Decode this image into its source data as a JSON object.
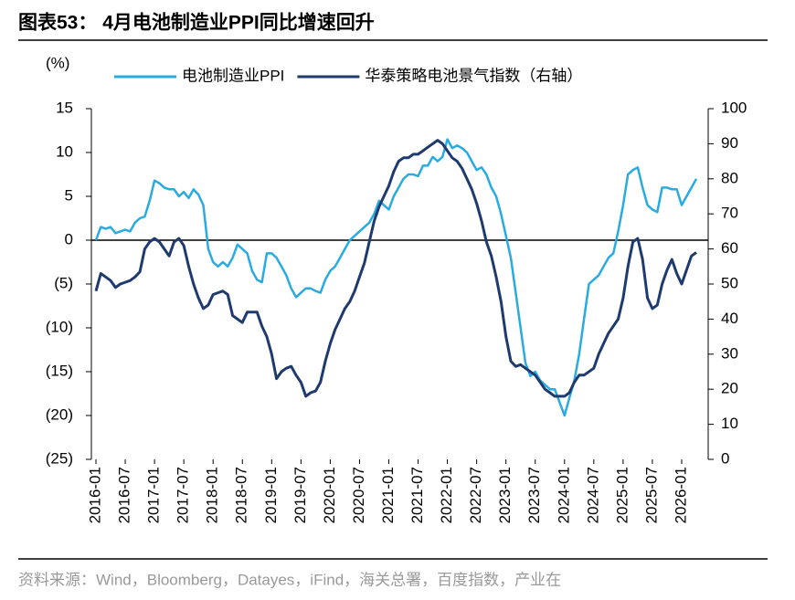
{
  "chart_data": {
    "type": "line",
    "title": "图表53： 4月电池制造业PPI同比增速回升",
    "y_label": "(%)",
    "source": "资料来源：Wind，Bloomberg，Datayes，iFind，海关总署，百度指数，产业在",
    "categories": [
      "2016-01",
      null,
      null,
      null,
      null,
      null,
      "2016-07",
      null,
      null,
      null,
      null,
      null,
      "2017-01",
      null,
      null,
      null,
      null,
      null,
      "2017-07",
      null,
      null,
      null,
      null,
      null,
      "2018-01",
      null,
      null,
      null,
      null,
      null,
      "2018-07",
      null,
      null,
      null,
      null,
      null,
      "2019-01",
      null,
      null,
      null,
      null,
      null,
      "2019-07",
      null,
      null,
      null,
      null,
      null,
      "2020-01",
      null,
      null,
      null,
      null,
      null,
      "2020-07",
      null,
      null,
      null,
      null,
      null,
      "2021-01",
      null,
      null,
      null,
      null,
      null,
      "2021-07",
      null,
      null,
      null,
      null,
      null,
      "2022-01",
      null,
      null,
      null,
      null,
      null,
      "2022-07",
      null,
      null,
      null,
      null,
      null,
      "2023-01",
      null,
      null,
      null,
      null,
      null,
      "2023-07",
      null,
      null,
      null,
      null,
      null,
      "2024-01",
      null,
      null,
      null,
      null,
      null,
      "2024-07",
      null,
      null,
      null,
      null,
      null,
      "2025-01",
      null,
      null,
      null,
      null,
      null,
      "2025-07",
      null,
      null,
      null,
      null,
      null,
      "2026-01",
      null,
      null,
      null
    ],
    "series": [
      {
        "name": "电池制造业PPI",
        "color": "#29abe2",
        "values": [
          0,
          1.5,
          1.3,
          1.5,
          0.8,
          1.0,
          1.2,
          1.0,
          2.0,
          2.5,
          2.7,
          4.5,
          6.8,
          6.5,
          6.0,
          5.8,
          5.8,
          5.0,
          5.5,
          4.8,
          5.8,
          5.2,
          4.0,
          -1.0,
          -2.5,
          -3.0,
          -2.5,
          -3.0,
          -2.0,
          -0.5,
          -1.0,
          -1.5,
          -3.5,
          -4.5,
          -4.8,
          -1.5,
          -1.5,
          -2.0,
          -3.0,
          -4.0,
          -5.5,
          -6.5,
          -6.0,
          -5.5,
          -5.5,
          -5.8,
          -6.0,
          -4.5,
          -3.5,
          -3.0,
          -2.0,
          -1.0,
          0,
          0.5,
          1.0,
          1.5,
          2.0,
          3.0,
          4.5,
          4.0,
          3.5,
          5,
          6,
          7,
          7.5,
          7.5,
          7.3,
          8.5,
          8.5,
          9.5,
          9,
          9.5,
          11.5,
          10.5,
          10.8,
          10.5,
          10.0,
          9.0,
          8.0,
          8.3,
          7.5,
          6.0,
          5.0,
          3.0,
          0.5,
          -2.0,
          -6.0,
          -10.0,
          -14.0,
          -15.5,
          -15.0,
          -16.0,
          -16.5,
          -17.0,
          -17.0,
          -18.5,
          -20.0,
          -18.0,
          -16.0,
          -13.0,
          -9.0,
          -5.0,
          -4.5,
          -4.0,
          -3.0,
          -2.0,
          -1.5,
          1.0,
          4.0,
          7.5,
          8.0,
          8.3,
          6.0,
          4.0,
          3.5,
          3.2,
          6.0,
          6.0,
          5.8,
          5.8,
          4.0,
          5.0,
          6.0,
          7.0
        ]
      },
      {
        "name": "华泰策略电池景气指数（右轴）",
        "color": "#1f3a6e",
        "axis": "y2",
        "values": [
          48,
          53,
          52,
          51,
          49,
          50,
          50.5,
          51,
          52,
          53.5,
          60,
          62,
          63,
          62,
          60,
          58,
          62,
          63,
          61,
          55,
          50,
          46,
          43,
          44,
          47,
          47.5,
          48,
          47,
          41,
          40,
          39,
          42,
          42,
          42,
          38,
          35,
          30,
          23,
          25,
          26,
          26.5,
          24,
          22,
          18,
          19,
          19.5,
          22,
          28,
          33,
          37,
          40,
          43,
          45,
          48,
          52,
          56,
          62,
          68,
          72,
          75,
          78,
          82,
          85,
          86,
          86,
          87,
          87,
          88,
          89,
          90,
          91,
          90,
          88,
          86,
          85,
          83,
          80,
          77,
          73,
          68,
          62,
          58,
          52,
          45,
          35,
          28,
          26.5,
          27,
          26,
          25,
          24,
          22,
          20,
          19,
          18,
          18,
          18,
          19,
          22,
          24,
          24,
          25,
          26,
          30,
          33,
          36,
          38,
          40,
          46,
          55,
          62,
          63,
          57,
          46,
          43,
          44,
          50,
          54,
          57,
          53,
          50,
          54,
          58,
          59
        ]
      }
    ],
    "ylim": [
      -25,
      15
    ],
    "yticks": [
      {
        "value": -25,
        "label": "(25)"
      },
      {
        "value": -20,
        "label": "(20)"
      },
      {
        "value": -15,
        "label": "(15)"
      },
      {
        "value": -10,
        "label": "(10)"
      },
      {
        "value": -5,
        "label": "(5)"
      },
      0,
      5,
      10,
      15
    ],
    "y2lim": [
      0,
      100
    ],
    "y2ticks": [
      0,
      10,
      20,
      30,
      40,
      50,
      60,
      70,
      80,
      90,
      100
    ],
    "legend": "top"
  }
}
